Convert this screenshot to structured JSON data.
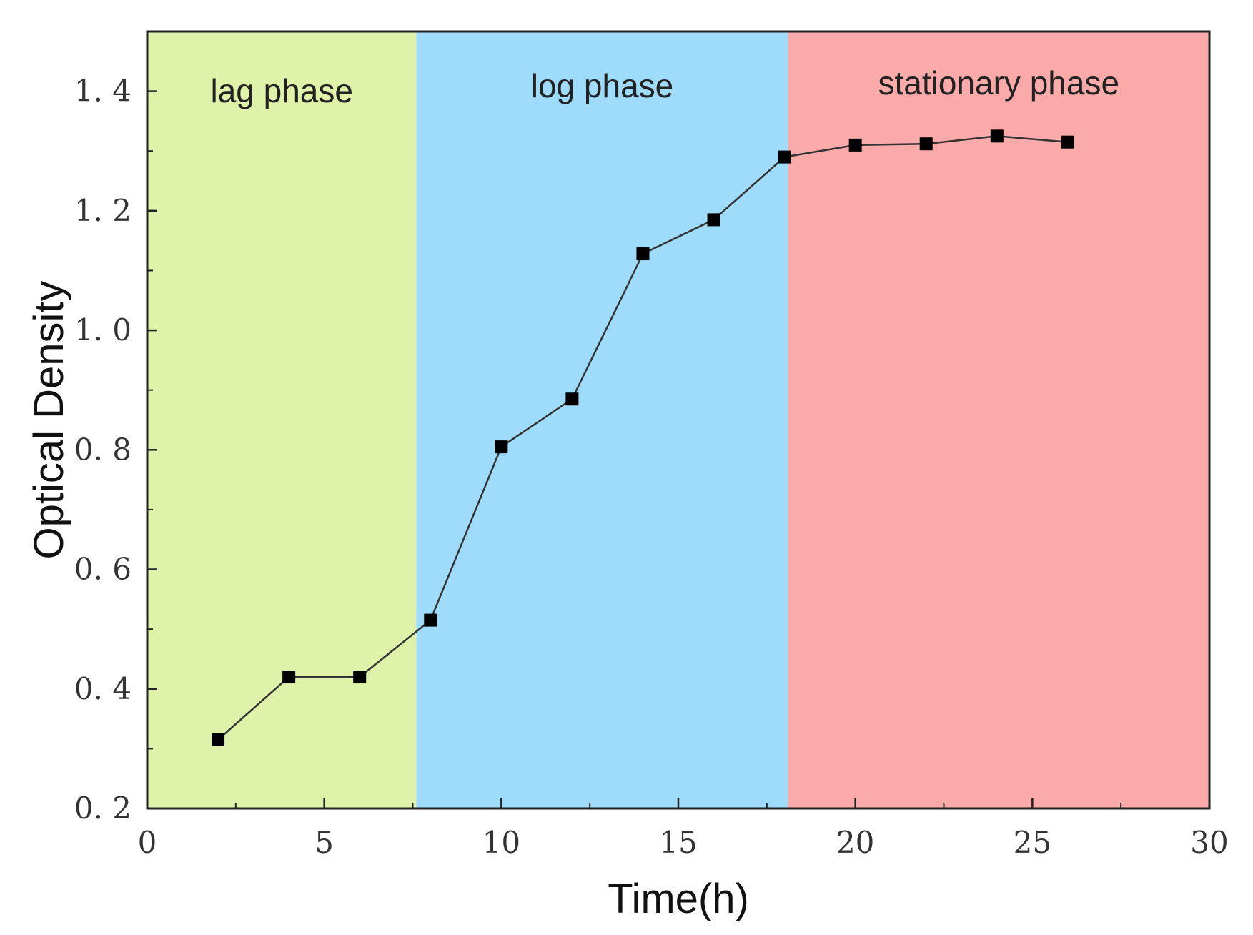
{
  "chart_data": {
    "type": "line",
    "title": "",
    "xlabel": "Time(h)",
    "ylabel": "Optical Density",
    "xlim": [
      0,
      30
    ],
    "ylim": [
      0.2,
      1.5
    ],
    "xticks": [
      0,
      5,
      10,
      15,
      20,
      25,
      30
    ],
    "xtick_labels": [
      "0",
      "5",
      "10",
      "15",
      "20",
      "25",
      "30"
    ],
    "yticks": [
      0.2,
      0.4,
      0.6,
      0.8,
      1.0,
      1.2,
      1.4
    ],
    "ytick_labels": [
      "0. 2",
      "0. 4",
      "0. 6",
      "0. 8",
      "1. 0",
      "1. 2",
      "1. 4"
    ],
    "grid": false,
    "legend": "none",
    "series": [
      {
        "name": "Optical Density",
        "marker": "square",
        "color": "#000000",
        "x": [
          2,
          4,
          6,
          8,
          10,
          12,
          14,
          16,
          18,
          20,
          22,
          24,
          26
        ],
        "y": [
          0.315,
          0.42,
          0.42,
          0.515,
          0.805,
          0.885,
          1.128,
          1.185,
          1.29,
          1.31,
          1.312,
          1.325,
          1.315
        ]
      }
    ],
    "regions": [
      {
        "label": "lag phase",
        "x_start": 0,
        "x_end": 7.6,
        "color": "#dff2a9"
      },
      {
        "label": "log phase",
        "x_start": 7.6,
        "x_end": 18.1,
        "color": "#9fdcfb"
      },
      {
        "label": "stationary phase",
        "x_start": 18.1,
        "x_end": 30,
        "color": "#fbaaaa"
      }
    ]
  }
}
